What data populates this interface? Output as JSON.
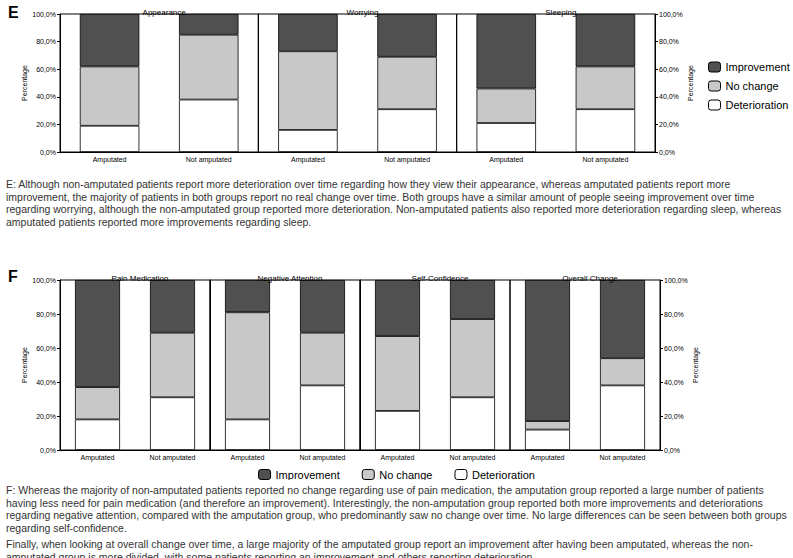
{
  "chart_data": [
    {
      "type": "bar",
      "stacked": true,
      "label": "E",
      "legend": "right",
      "grid": false,
      "categories": [
        "Amputated",
        "Not amputated"
      ],
      "ylabel": "Percentage",
      "ylim": [
        0,
        100
      ],
      "yticks": [
        {
          "value": 0,
          "label": "0,0%"
        },
        {
          "value": 20,
          "label": "20,0%"
        },
        {
          "value": 40,
          "label": "40,0%"
        },
        {
          "value": 60,
          "label": "60,0%"
        },
        {
          "value": 80,
          "label": "80,0%"
        },
        {
          "value": 100,
          "label": "100,0%"
        }
      ],
      "facets": [
        {
          "title": "Appearance",
          "series": [
            {
              "name": "Deterioration",
              "color": "#ffffff",
              "values": [
                19,
                38
              ]
            },
            {
              "name": "No change",
              "color": "#c8c8c8",
              "values": [
                43,
                47
              ]
            },
            {
              "name": "Improvement",
              "color": "#505050",
              "values": [
                38,
                15
              ]
            }
          ]
        },
        {
          "title": "Worrying",
          "series": [
            {
              "name": "Deterioration",
              "color": "#ffffff",
              "values": [
                16,
                31
              ]
            },
            {
              "name": "No change",
              "color": "#c8c8c8",
              "values": [
                57,
                38
              ]
            },
            {
              "name": "Improvement",
              "color": "#505050",
              "values": [
                27,
                31
              ]
            }
          ]
        },
        {
          "title": "Sleeping",
          "series": [
            {
              "name": "Deterioration",
              "color": "#ffffff",
              "values": [
                21,
                31
              ]
            },
            {
              "name": "No change",
              "color": "#c8c8c8",
              "values": [
                25,
                31
              ]
            },
            {
              "name": "Improvement",
              "color": "#505050",
              "values": [
                54,
                38
              ]
            }
          ]
        }
      ],
      "caption": [
        "E: Although non-amputated patients report more deterioration over time regarding how they view their appearance, whereas amputated patients report more improvement, the majority of patients in both groups report no real change over time. Both groups have a similar amount of people seeing improvement over time regarding worrying, although the non-amputated group reported more deterioration. Non-amputated patients also reported more deterioration regarding sleep, whereas amputated patients reported more improvements regarding sleep."
      ]
    },
    {
      "type": "bar",
      "stacked": true,
      "label": "F",
      "legend": "bottom",
      "grid": false,
      "categories": [
        "Amputated",
        "Not amputated"
      ],
      "ylabel": "Percentage",
      "ylim": [
        0,
        100
      ],
      "yticks": [
        {
          "value": 0,
          "label": "0,0%"
        },
        {
          "value": 20,
          "label": "20,0%"
        },
        {
          "value": 40,
          "label": "40,0%"
        },
        {
          "value": 60,
          "label": "60,0%"
        },
        {
          "value": 80,
          "label": "80,0%"
        },
        {
          "value": 100,
          "label": "100,0%"
        }
      ],
      "facets": [
        {
          "title": "Pain Medication",
          "series": [
            {
              "name": "Deterioration",
              "color": "#ffffff",
              "values": [
                18,
                31
              ]
            },
            {
              "name": "No change",
              "color": "#c8c8c8",
              "values": [
                19,
                38
              ]
            },
            {
              "name": "Improvement",
              "color": "#505050",
              "values": [
                63,
                31
              ]
            }
          ]
        },
        {
          "title": "Negative Attention",
          "series": [
            {
              "name": "Deterioration",
              "color": "#ffffff",
              "values": [
                18,
                38
              ]
            },
            {
              "name": "No change",
              "color": "#c8c8c8",
              "values": [
                63,
                31
              ]
            },
            {
              "name": "Improvement",
              "color": "#505050",
              "values": [
                19,
                31
              ]
            }
          ]
        },
        {
          "title": "Self-Confidence",
          "series": [
            {
              "name": "Deterioration",
              "color": "#ffffff",
              "values": [
                23,
                31
              ]
            },
            {
              "name": "No change",
              "color": "#c8c8c8",
              "values": [
                44,
                46
              ]
            },
            {
              "name": "Improvement",
              "color": "#505050",
              "values": [
                33,
                23
              ]
            }
          ]
        },
        {
          "title": "Overall Change",
          "series": [
            {
              "name": "Deterioration",
              "color": "#ffffff",
              "values": [
                12,
                38
              ]
            },
            {
              "name": "No change",
              "color": "#c8c8c8",
              "values": [
                5,
                16
              ]
            },
            {
              "name": "Improvement",
              "color": "#505050",
              "values": [
                83,
                46
              ]
            }
          ]
        }
      ],
      "caption": [
        "F: Whereas the majority of non-amputated patients reported no change regarding use of pain medication, the amputation group reported a large number of patients having less need for pain medication (and therefore an improvement). Interestingly, the non-amputation group reported both more improvements and deteriorations regarding negative attention, compared with the amputation group, who predominantly saw no change over time. No large differences can be seen between both groups regarding self-confidence.",
        "Finally, when looking at overall change over time, a large majority of the amputated group report an improvement after having been amputated, whereas the non-amputated group is more divided, with some patients reporting an improvement and others reporting deterioration."
      ]
    }
  ]
}
